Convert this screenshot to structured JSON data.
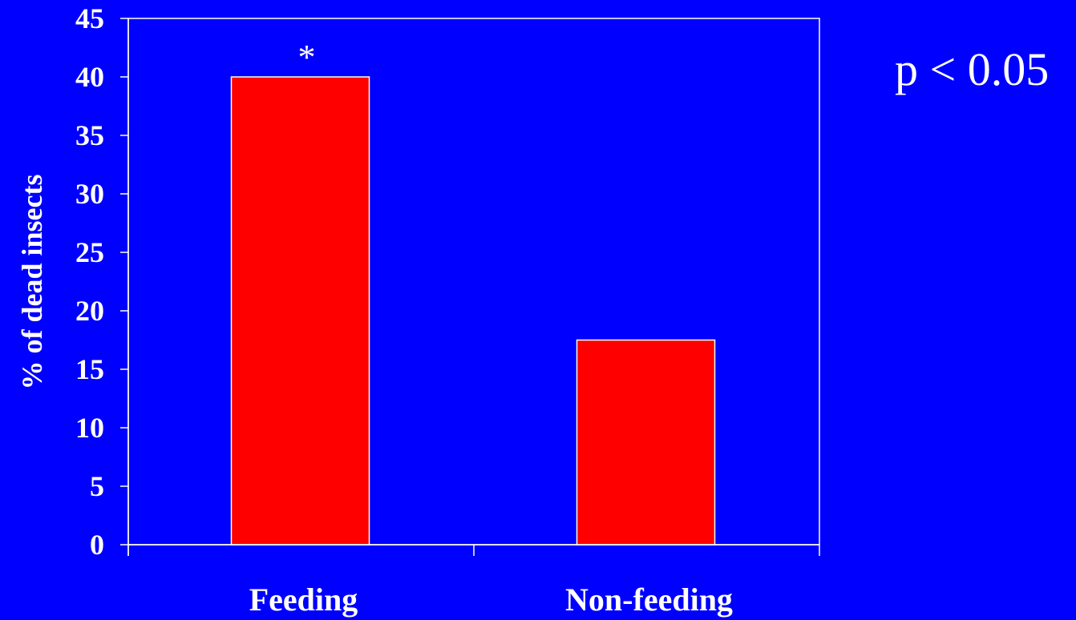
{
  "chart_data": {
    "type": "bar",
    "categories": [
      "Feeding",
      "Non-feeding"
    ],
    "values": [
      40,
      17.5
    ],
    "title": "",
    "xlabel": "",
    "ylabel": "% of dead insects",
    "ylim": [
      0,
      45
    ],
    "yticks": [
      0,
      5,
      10,
      15,
      20,
      25,
      30,
      35,
      40,
      45
    ],
    "grid": false,
    "legend": "none",
    "bar_annotations": [
      "*",
      ""
    ],
    "annotation": "p < 0.05",
    "colors": {
      "background": "#0000ff",
      "bar_fill": "#ff0000",
      "bar_stroke": "#ffffff",
      "axis": "#ffffff",
      "text": "#ffffff"
    }
  }
}
